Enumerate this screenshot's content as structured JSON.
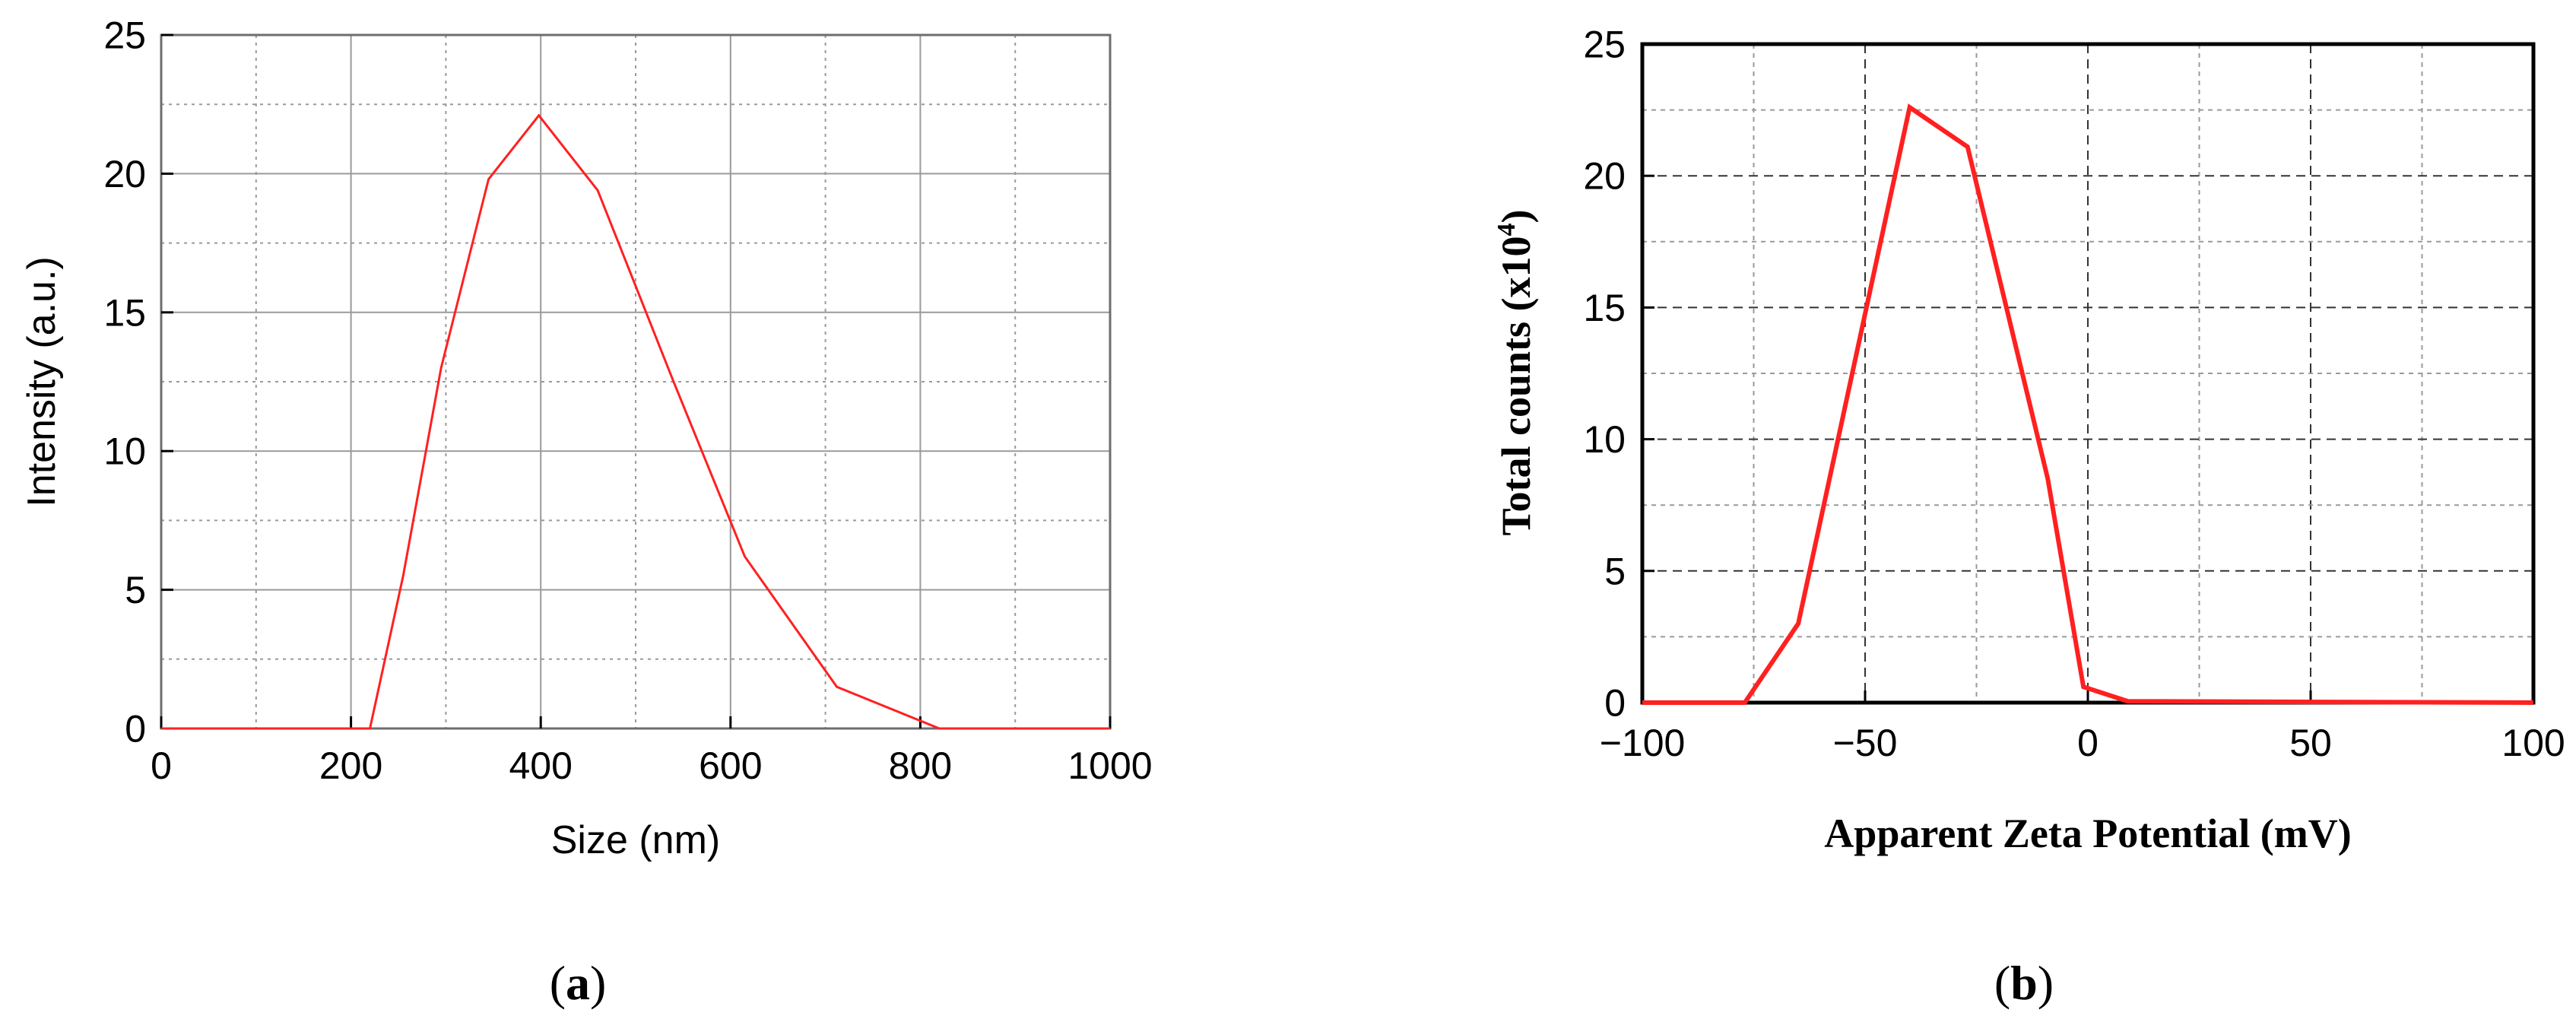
{
  "figure": {
    "panel_a_label": {
      "open": "(",
      "letter": "a",
      "close": ")"
    },
    "panel_b_label": {
      "open": "(",
      "letter": "b",
      "close": ")"
    }
  },
  "colors": {
    "series": "#ff2020",
    "axis": "#000000",
    "grid": "#9a9a9a"
  },
  "chart_data": [
    {
      "type": "line",
      "panel": "a",
      "title": "",
      "xlabel": "Size (nm)",
      "ylabel": "Intensity (a.u.)",
      "xlim": [
        0,
        1000
      ],
      "ylim": [
        0,
        25
      ],
      "xticks": [
        0,
        200,
        400,
        600,
        800,
        1000
      ],
      "yticks": [
        0,
        5,
        10,
        15,
        20,
        25
      ],
      "grid": true,
      "legend": "none",
      "series": [
        {
          "x": [
            0,
            220,
            255,
            295,
            345,
            398,
            460,
            540,
            615,
            712,
            820,
            1000
          ],
          "y": [
            0,
            0,
            5.5,
            13.0,
            19.8,
            22.1,
            19.4,
            12.5,
            6.2,
            1.5,
            0,
            0
          ]
        }
      ]
    },
    {
      "type": "line",
      "panel": "b",
      "title": "",
      "xlabel": "Apparent Zeta Potential (mV)",
      "ylabel": {
        "main": "Total counts (x10",
        "sup": "4",
        "close": ")"
      },
      "xlim": [
        -100,
        100
      ],
      "ylim": [
        0,
        25
      ],
      "xticks": [
        -100,
        -50,
        0,
        50,
        100
      ],
      "xtick_labels": [
        "−100",
        "−50",
        "0",
        "50",
        "100"
      ],
      "yticks": [
        0,
        5,
        10,
        15,
        20,
        25
      ],
      "grid": true,
      "legend": "none",
      "series": [
        {
          "x": [
            -100,
            -77,
            -65,
            -40,
            -27,
            -9,
            -1,
            9,
            100
          ],
          "y": [
            0,
            0,
            3,
            22.6,
            21.1,
            8.5,
            0.6,
            0.05,
            0
          ]
        }
      ]
    }
  ]
}
